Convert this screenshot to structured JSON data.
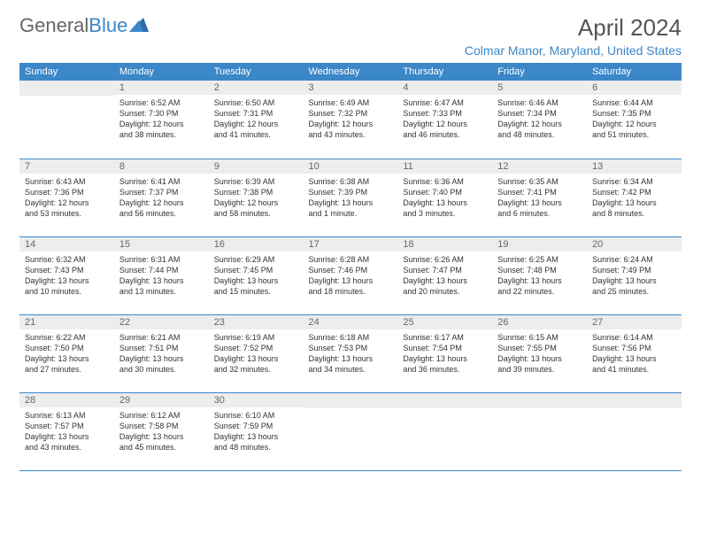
{
  "logo": {
    "general": "General",
    "blue": "Blue"
  },
  "title": "April 2024",
  "location": "Colmar Manor, Maryland, United States",
  "colors": {
    "accent": "#3b87c8",
    "daynum_bg": "#eceded",
    "text": "#333333",
    "header_text": "#555555"
  },
  "weekdays": [
    "Sunday",
    "Monday",
    "Tuesday",
    "Wednesday",
    "Thursday",
    "Friday",
    "Saturday"
  ],
  "weeks": [
    [
      {
        "day": "",
        "sunrise": "",
        "sunset": "",
        "daylight1": "",
        "daylight2": ""
      },
      {
        "day": "1",
        "sunrise": "Sunrise: 6:52 AM",
        "sunset": "Sunset: 7:30 PM",
        "daylight1": "Daylight: 12 hours",
        "daylight2": "and 38 minutes."
      },
      {
        "day": "2",
        "sunrise": "Sunrise: 6:50 AM",
        "sunset": "Sunset: 7:31 PM",
        "daylight1": "Daylight: 12 hours",
        "daylight2": "and 41 minutes."
      },
      {
        "day": "3",
        "sunrise": "Sunrise: 6:49 AM",
        "sunset": "Sunset: 7:32 PM",
        "daylight1": "Daylight: 12 hours",
        "daylight2": "and 43 minutes."
      },
      {
        "day": "4",
        "sunrise": "Sunrise: 6:47 AM",
        "sunset": "Sunset: 7:33 PM",
        "daylight1": "Daylight: 12 hours",
        "daylight2": "and 46 minutes."
      },
      {
        "day": "5",
        "sunrise": "Sunrise: 6:46 AM",
        "sunset": "Sunset: 7:34 PM",
        "daylight1": "Daylight: 12 hours",
        "daylight2": "and 48 minutes."
      },
      {
        "day": "6",
        "sunrise": "Sunrise: 6:44 AM",
        "sunset": "Sunset: 7:35 PM",
        "daylight1": "Daylight: 12 hours",
        "daylight2": "and 51 minutes."
      }
    ],
    [
      {
        "day": "7",
        "sunrise": "Sunrise: 6:43 AM",
        "sunset": "Sunset: 7:36 PM",
        "daylight1": "Daylight: 12 hours",
        "daylight2": "and 53 minutes."
      },
      {
        "day": "8",
        "sunrise": "Sunrise: 6:41 AM",
        "sunset": "Sunset: 7:37 PM",
        "daylight1": "Daylight: 12 hours",
        "daylight2": "and 56 minutes."
      },
      {
        "day": "9",
        "sunrise": "Sunrise: 6:39 AM",
        "sunset": "Sunset: 7:38 PM",
        "daylight1": "Daylight: 12 hours",
        "daylight2": "and 58 minutes."
      },
      {
        "day": "10",
        "sunrise": "Sunrise: 6:38 AM",
        "sunset": "Sunset: 7:39 PM",
        "daylight1": "Daylight: 13 hours",
        "daylight2": "and 1 minute."
      },
      {
        "day": "11",
        "sunrise": "Sunrise: 6:36 AM",
        "sunset": "Sunset: 7:40 PM",
        "daylight1": "Daylight: 13 hours",
        "daylight2": "and 3 minutes."
      },
      {
        "day": "12",
        "sunrise": "Sunrise: 6:35 AM",
        "sunset": "Sunset: 7:41 PM",
        "daylight1": "Daylight: 13 hours",
        "daylight2": "and 6 minutes."
      },
      {
        "day": "13",
        "sunrise": "Sunrise: 6:34 AM",
        "sunset": "Sunset: 7:42 PM",
        "daylight1": "Daylight: 13 hours",
        "daylight2": "and 8 minutes."
      }
    ],
    [
      {
        "day": "14",
        "sunrise": "Sunrise: 6:32 AM",
        "sunset": "Sunset: 7:43 PM",
        "daylight1": "Daylight: 13 hours",
        "daylight2": "and 10 minutes."
      },
      {
        "day": "15",
        "sunrise": "Sunrise: 6:31 AM",
        "sunset": "Sunset: 7:44 PM",
        "daylight1": "Daylight: 13 hours",
        "daylight2": "and 13 minutes."
      },
      {
        "day": "16",
        "sunrise": "Sunrise: 6:29 AM",
        "sunset": "Sunset: 7:45 PM",
        "daylight1": "Daylight: 13 hours",
        "daylight2": "and 15 minutes."
      },
      {
        "day": "17",
        "sunrise": "Sunrise: 6:28 AM",
        "sunset": "Sunset: 7:46 PM",
        "daylight1": "Daylight: 13 hours",
        "daylight2": "and 18 minutes."
      },
      {
        "day": "18",
        "sunrise": "Sunrise: 6:26 AM",
        "sunset": "Sunset: 7:47 PM",
        "daylight1": "Daylight: 13 hours",
        "daylight2": "and 20 minutes."
      },
      {
        "day": "19",
        "sunrise": "Sunrise: 6:25 AM",
        "sunset": "Sunset: 7:48 PM",
        "daylight1": "Daylight: 13 hours",
        "daylight2": "and 22 minutes."
      },
      {
        "day": "20",
        "sunrise": "Sunrise: 6:24 AM",
        "sunset": "Sunset: 7:49 PM",
        "daylight1": "Daylight: 13 hours",
        "daylight2": "and 25 minutes."
      }
    ],
    [
      {
        "day": "21",
        "sunrise": "Sunrise: 6:22 AM",
        "sunset": "Sunset: 7:50 PM",
        "daylight1": "Daylight: 13 hours",
        "daylight2": "and 27 minutes."
      },
      {
        "day": "22",
        "sunrise": "Sunrise: 6:21 AM",
        "sunset": "Sunset: 7:51 PM",
        "daylight1": "Daylight: 13 hours",
        "daylight2": "and 30 minutes."
      },
      {
        "day": "23",
        "sunrise": "Sunrise: 6:19 AM",
        "sunset": "Sunset: 7:52 PM",
        "daylight1": "Daylight: 13 hours",
        "daylight2": "and 32 minutes."
      },
      {
        "day": "24",
        "sunrise": "Sunrise: 6:18 AM",
        "sunset": "Sunset: 7:53 PM",
        "daylight1": "Daylight: 13 hours",
        "daylight2": "and 34 minutes."
      },
      {
        "day": "25",
        "sunrise": "Sunrise: 6:17 AM",
        "sunset": "Sunset: 7:54 PM",
        "daylight1": "Daylight: 13 hours",
        "daylight2": "and 36 minutes."
      },
      {
        "day": "26",
        "sunrise": "Sunrise: 6:15 AM",
        "sunset": "Sunset: 7:55 PM",
        "daylight1": "Daylight: 13 hours",
        "daylight2": "and 39 minutes."
      },
      {
        "day": "27",
        "sunrise": "Sunrise: 6:14 AM",
        "sunset": "Sunset: 7:56 PM",
        "daylight1": "Daylight: 13 hours",
        "daylight2": "and 41 minutes."
      }
    ],
    [
      {
        "day": "28",
        "sunrise": "Sunrise: 6:13 AM",
        "sunset": "Sunset: 7:57 PM",
        "daylight1": "Daylight: 13 hours",
        "daylight2": "and 43 minutes."
      },
      {
        "day": "29",
        "sunrise": "Sunrise: 6:12 AM",
        "sunset": "Sunset: 7:58 PM",
        "daylight1": "Daylight: 13 hours",
        "daylight2": "and 45 minutes."
      },
      {
        "day": "30",
        "sunrise": "Sunrise: 6:10 AM",
        "sunset": "Sunset: 7:59 PM",
        "daylight1": "Daylight: 13 hours",
        "daylight2": "and 48 minutes."
      },
      {
        "day": "",
        "sunrise": "",
        "sunset": "",
        "daylight1": "",
        "daylight2": ""
      },
      {
        "day": "",
        "sunrise": "",
        "sunset": "",
        "daylight1": "",
        "daylight2": ""
      },
      {
        "day": "",
        "sunrise": "",
        "sunset": "",
        "daylight1": "",
        "daylight2": ""
      },
      {
        "day": "",
        "sunrise": "",
        "sunset": "",
        "daylight1": "",
        "daylight2": ""
      }
    ]
  ]
}
